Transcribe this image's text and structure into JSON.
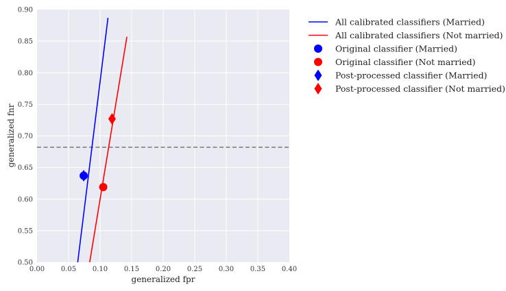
{
  "chart_data": {
    "type": "line",
    "xlabel": "generalized fpr",
    "ylabel": "generalized fnr",
    "xlim": [
      0.0,
      0.4
    ],
    "ylim": [
      0.5,
      0.9
    ],
    "xticks": [
      "0.00",
      "0.05",
      "0.10",
      "0.15",
      "0.20",
      "0.25",
      "0.30",
      "0.35",
      "0.40"
    ],
    "yticks": [
      "0.50",
      "0.55",
      "0.60",
      "0.65",
      "0.70",
      "0.75",
      "0.80",
      "0.85",
      "0.90"
    ],
    "grid": true,
    "background": "#eaeaf2",
    "hline": {
      "y": 0.682,
      "color": "#808080",
      "style": "dashed"
    },
    "series": [
      {
        "name": "All calibrated classifiers (Married)",
        "kind": "line",
        "color": "#0000ff",
        "x": [
          0.0645,
          0.1125
        ],
        "y": [
          0.5,
          0.887
        ]
      },
      {
        "name": "All calibrated classifiers (Not married)",
        "kind": "line",
        "color": "#ff0000",
        "x": [
          0.0835,
          0.1425
        ],
        "y": [
          0.5,
          0.857
        ]
      },
      {
        "name": "Original classifier (Married)",
        "kind": "marker",
        "marker": "circle",
        "color": "#0000ff",
        "x": [
          0.074
        ],
        "y": [
          0.637
        ]
      },
      {
        "name": "Original classifier (Not married)",
        "kind": "marker",
        "marker": "circle",
        "color": "#ff0000",
        "x": [
          0.105
        ],
        "y": [
          0.619
        ]
      },
      {
        "name": "Post-processed classifier (Married)",
        "kind": "marker",
        "marker": "diamond",
        "color": "#0000ff",
        "x": [
          0.074
        ],
        "y": [
          0.637
        ]
      },
      {
        "name": "Post-processed classifier (Not married)",
        "kind": "marker",
        "marker": "diamond",
        "color": "#ff0000",
        "x": [
          0.119
        ],
        "y": [
          0.727
        ]
      }
    ],
    "legend_position": "outside-right-top"
  }
}
